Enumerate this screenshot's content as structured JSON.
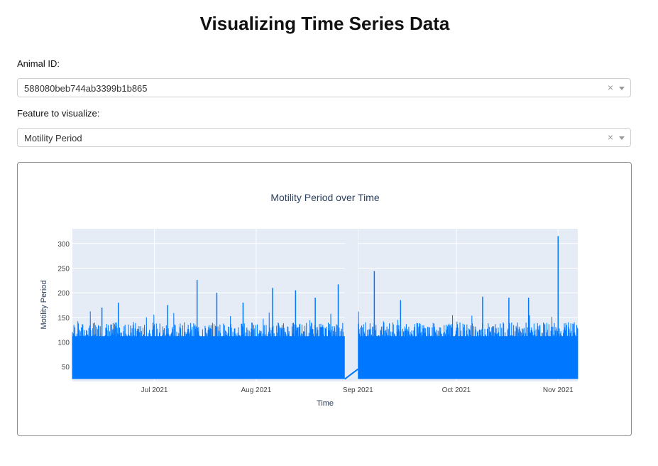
{
  "header": {
    "title": "Visualizing Time Series Data"
  },
  "animal": {
    "label": "Animal ID:",
    "selected": "588080beb744ab3399b1b865",
    "clear_glyph": "×",
    "arrow_icon": "caret-down-icon"
  },
  "feature": {
    "label": "Feature to visualize:",
    "selected": "Motility Period",
    "clear_glyph": "×",
    "arrow_icon": "caret-down-icon"
  },
  "chart_data": {
    "type": "line",
    "title": "Motility Period over Time",
    "xlabel": "Time",
    "ylabel": "Motility Period",
    "x_ticks": [
      "Jul 2021",
      "Aug 2021",
      "Sep 2021",
      "Oct 2021",
      "Nov 2021"
    ],
    "y_ticks": [
      50,
      100,
      150,
      200,
      250,
      300
    ],
    "xlim": [
      "2021-06-06",
      "2021-11-07"
    ],
    "ylim": [
      20,
      330
    ],
    "line_color": "#0077ff",
    "plot_bg": "#e5ecf6",
    "grid": true,
    "baseline": 25,
    "gap": {
      "start": "2021-08-28",
      "end": "2021-09-01"
    },
    "peaks": [
      {
        "x": "2021-06-15",
        "y": 170
      },
      {
        "x": "2021-06-20",
        "y": 180
      },
      {
        "x": "2021-07-05",
        "y": 175
      },
      {
        "x": "2021-07-14",
        "y": 226
      },
      {
        "x": "2021-07-20",
        "y": 200
      },
      {
        "x": "2021-07-28",
        "y": 180
      },
      {
        "x": "2021-08-06",
        "y": 210
      },
      {
        "x": "2021-08-13",
        "y": 205
      },
      {
        "x": "2021-08-19",
        "y": 190
      },
      {
        "x": "2021-08-26",
        "y": 217
      },
      {
        "x": "2021-09-06",
        "y": 244
      },
      {
        "x": "2021-09-14",
        "y": 185
      },
      {
        "x": "2021-10-09",
        "y": 192
      },
      {
        "x": "2021-10-17",
        "y": 190
      },
      {
        "x": "2021-10-23",
        "y": 190
      },
      {
        "x": "2021-11-01",
        "y": 315
      }
    ]
  }
}
